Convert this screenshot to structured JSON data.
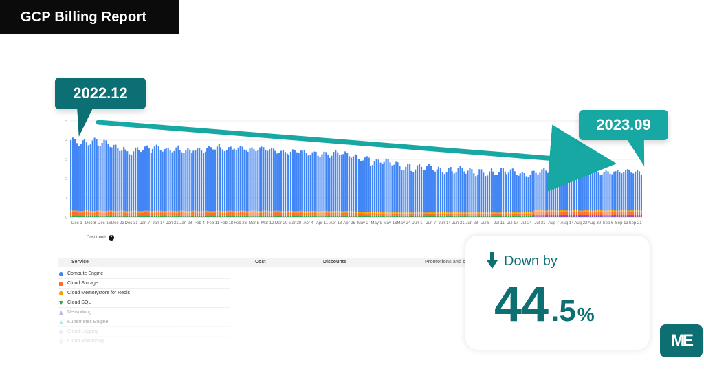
{
  "header": {
    "title": "GCP Billing Report"
  },
  "callouts": {
    "start_label": "2022.12",
    "end_label": "2023.09"
  },
  "chart_data": {
    "type": "bar",
    "categories": [
      "Dec 1",
      "Dec 8",
      "Dec 16",
      "Dec 23",
      "Dec 31",
      "Jan 7",
      "Jan 14",
      "Jan 21",
      "Jan 28",
      "Feb 4",
      "Feb 11",
      "Feb 18",
      "Feb 26",
      "Mar 5",
      "Mar 12",
      "Mar 20",
      "Mar 28",
      "Apr 4",
      "Apr 11",
      "Apr 18",
      "Apr 25",
      "May 2",
      "May 9",
      "May 16",
      "May 24",
      "Jun 1",
      "Jun 7",
      "Jun 14",
      "Jun 21",
      "Jun 28",
      "Jul 5",
      "Jul 11",
      "Jul 17",
      "Jul 24",
      "Jul 31",
      "Aug 7",
      "Aug 14",
      "Aug 22",
      "Aug 30",
      "Sep 6",
      "Sep 13",
      "Sep 21"
    ],
    "series": [
      {
        "name": "Compute Engine",
        "values": [
          3.6,
          3.6,
          3.5,
          3.3,
          3.1,
          3.2,
          3.3,
          3.2,
          3.1,
          3.2,
          3.3,
          3.2,
          3.3,
          3.2,
          3.2,
          3.1,
          3.1,
          3.0,
          3.0,
          3.0,
          2.9,
          2.8,
          2.6,
          2.6,
          2.4,
          2.3,
          2.3,
          2.2,
          2.2,
          2.1,
          2.1,
          2.1,
          2.1,
          2.0,
          2.0,
          2.0,
          2.0,
          2.0,
          2.0,
          2.0,
          2.0,
          2.0
        ]
      },
      {
        "name": "Cloud Storage",
        "values": [
          0.25,
          0.25,
          0.25,
          0.25,
          0.24,
          0.24,
          0.24,
          0.24,
          0.24,
          0.24,
          0.24,
          0.24,
          0.24,
          0.24,
          0.24,
          0.24,
          0.24,
          0.23,
          0.23,
          0.23,
          0.23,
          0.2,
          0.2,
          0.18,
          0.18,
          0.18,
          0.18,
          0.18,
          0.18,
          0.18,
          0.18,
          0.18,
          0.18,
          0.18,
          0.26,
          0.26,
          0.26,
          0.26,
          0.26,
          0.26,
          0.26,
          0.26
        ]
      },
      {
        "name": "Cloud Memorystore for Redis",
        "values": [
          0.08,
          0.08,
          0.08,
          0.08,
          0.08,
          0.08,
          0.08,
          0.08,
          0.08,
          0.08,
          0.08,
          0.08,
          0.08,
          0.08,
          0.08,
          0.08,
          0.08,
          0.08,
          0.08,
          0.08,
          0.08,
          0.07,
          0.07,
          0.07,
          0.07,
          0.07,
          0.07,
          0.07,
          0.07,
          0.07,
          0.07,
          0.07,
          0.07,
          0.07,
          0.09,
          0.09,
          0.09,
          0.09,
          0.09,
          0.09,
          0.09,
          0.09
        ]
      }
    ],
    "ylim": [
      0,
      5
    ],
    "grid": true,
    "colors": {
      "compute": "#4285F4",
      "storage": "#FF6D2D",
      "redis": "#F4A000",
      "sql": "#34A853",
      "networking": "#7F56D9",
      "trend": "#0d6f72",
      "accent": "#18a8a4"
    },
    "legend": {
      "label": "Cost trend",
      "help_icon": "question-icon"
    }
  },
  "table": {
    "headers": [
      "Service",
      "Cost",
      "Discounts",
      "Promotions and oth"
    ],
    "rows": [
      {
        "label": "Compute Engine",
        "icon": "circle-icon",
        "color": "#4285F4"
      },
      {
        "label": "Cloud Storage",
        "icon": "square-icon",
        "color": "#FF6D2D"
      },
      {
        "label": "Cloud Memorystore for Redis",
        "icon": "circle-icon",
        "color": "#F4A000"
      },
      {
        "label": "Cloud SQL",
        "icon": "triangle-down-icon",
        "color": "#34A853"
      },
      {
        "label": "Networking",
        "icon": "triangle-icon",
        "color": "#7F56D9"
      },
      {
        "label": "Kubernetes Engine",
        "icon": "triangle-icon",
        "color": "#4DD0E1"
      },
      {
        "label": "Cloud Logging",
        "icon": "circle-icon",
        "color": "#90A4AE"
      },
      {
        "label": "Cloud Monitoring",
        "icon": "circle-icon",
        "color": "#B0BEC5"
      }
    ]
  },
  "summary": {
    "down_label": "Down by",
    "value_int": "44",
    "value_dec": ".5",
    "value_pct": "%"
  },
  "logo": {
    "text": "ME"
  }
}
